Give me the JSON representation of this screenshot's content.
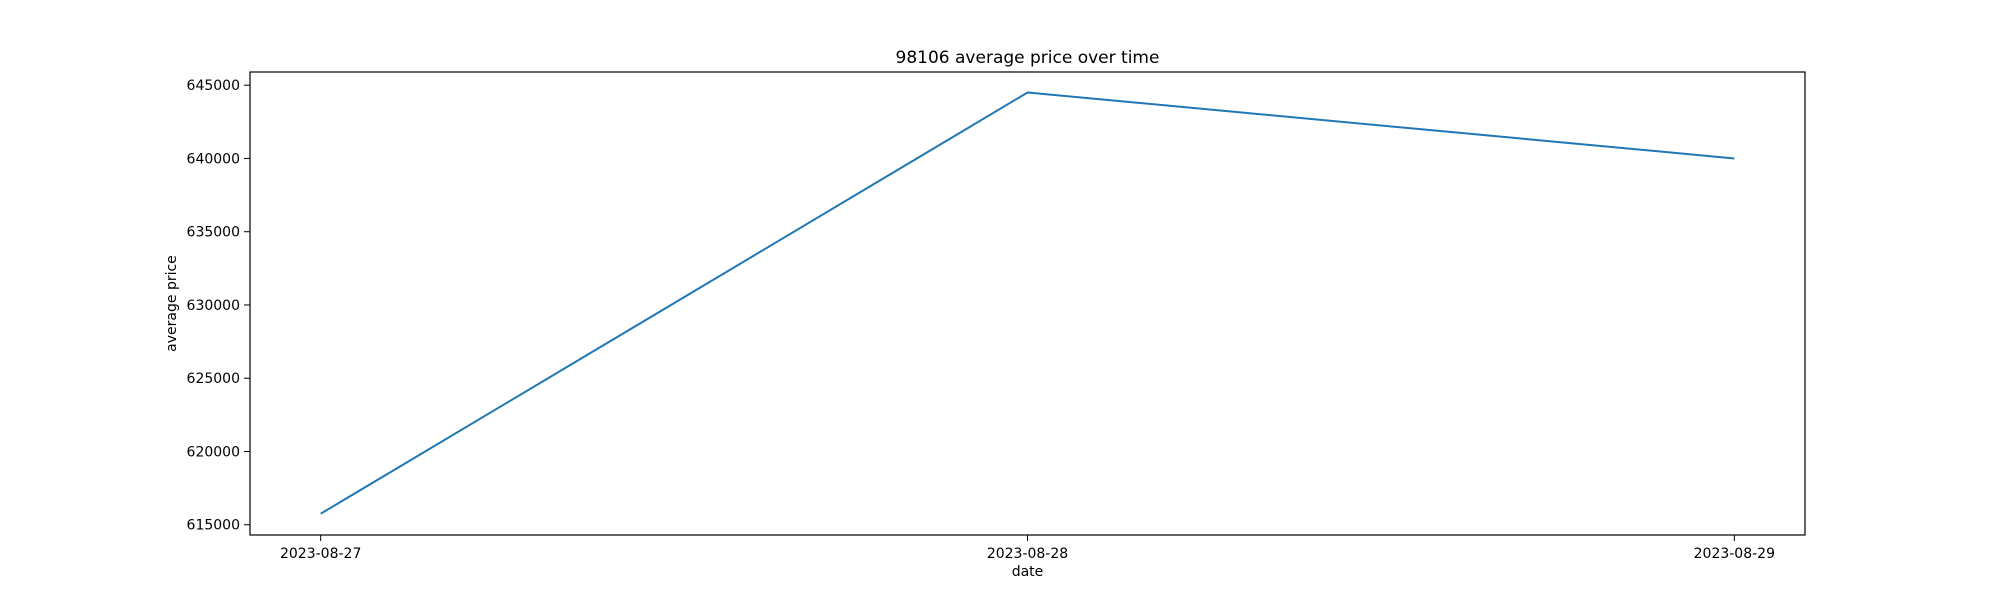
{
  "chart_data": {
    "type": "line",
    "title": "98106 average price over time",
    "xlabel": "date",
    "ylabel": "average price",
    "x": [
      "2023-08-27",
      "2023-08-28",
      "2023-08-29"
    ],
    "series": [
      {
        "values": [
          615750,
          644500,
          640000
        ],
        "color": "#1f77b4"
      }
    ],
    "yticks": [
      615000,
      620000,
      625000,
      630000,
      635000,
      640000,
      645000
    ],
    "ylim": [
      614300,
      645900
    ],
    "xlim": [
      -0.1,
      2.1
    ],
    "grid": false,
    "legend": "none"
  }
}
